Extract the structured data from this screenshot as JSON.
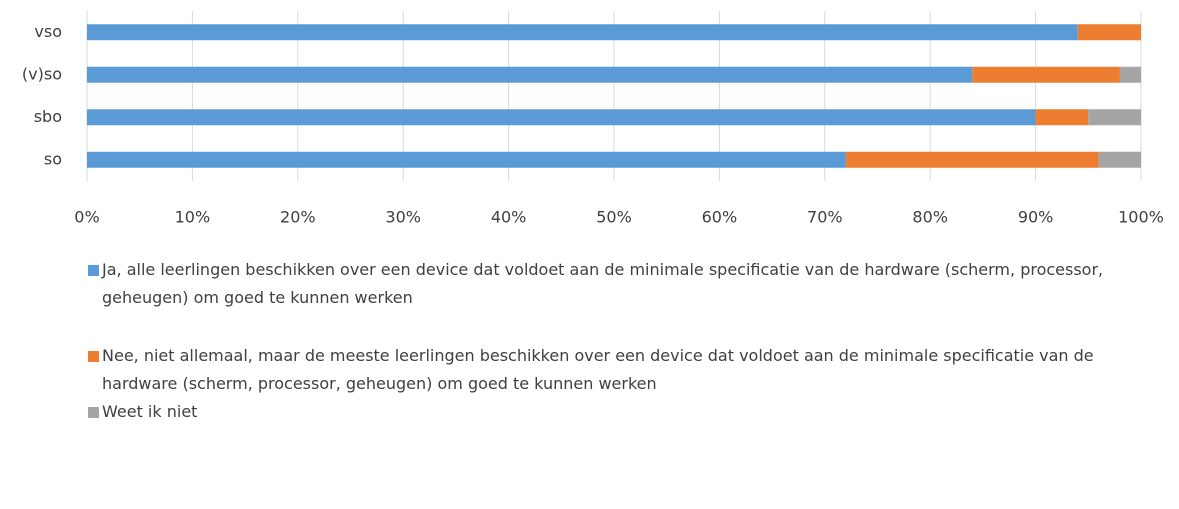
{
  "chart_data": {
    "type": "stacked_barh",
    "categories": [
      "vso",
      "(v)so",
      "sbo",
      "so"
    ],
    "series": [
      {
        "name": "Ja, alle leerlingen beschikken over een device dat voldoet aan de minimale specificatie van de hardware (scherm, processor, geheugen) om goed te kunnen werken",
        "color": "#5b9bd5",
        "values": [
          94,
          84,
          90,
          72
        ]
      },
      {
        "name": "Nee, niet allemaal, maar de meeste leerlingen beschikken over een device dat voldoet aan de minimale specificatie van de hardware (scherm, processor, geheugen) om goed te kunnen werken",
        "color": "#ed7d31",
        "values": [
          6,
          14,
          5,
          24
        ]
      },
      {
        "name": "Weet ik niet",
        "color": "#a5a5a5",
        "values": [
          0,
          2,
          5,
          4
        ]
      }
    ],
    "xlim": [
      0,
      100
    ],
    "xticks": [
      {
        "value": 0,
        "label": "0%"
      },
      {
        "value": 10,
        "label": "10%"
      },
      {
        "value": 20,
        "label": "20%"
      },
      {
        "value": 30,
        "label": "30%"
      },
      {
        "value": 40,
        "label": "40%"
      },
      {
        "value": 50,
        "label": "50%"
      },
      {
        "value": 60,
        "label": "60%"
      },
      {
        "value": 70,
        "label": "70%"
      },
      {
        "value": 80,
        "label": "80%"
      },
      {
        "value": 90,
        "label": "90%"
      },
      {
        "value": 100,
        "label": "100%"
      }
    ],
    "grid": true
  }
}
